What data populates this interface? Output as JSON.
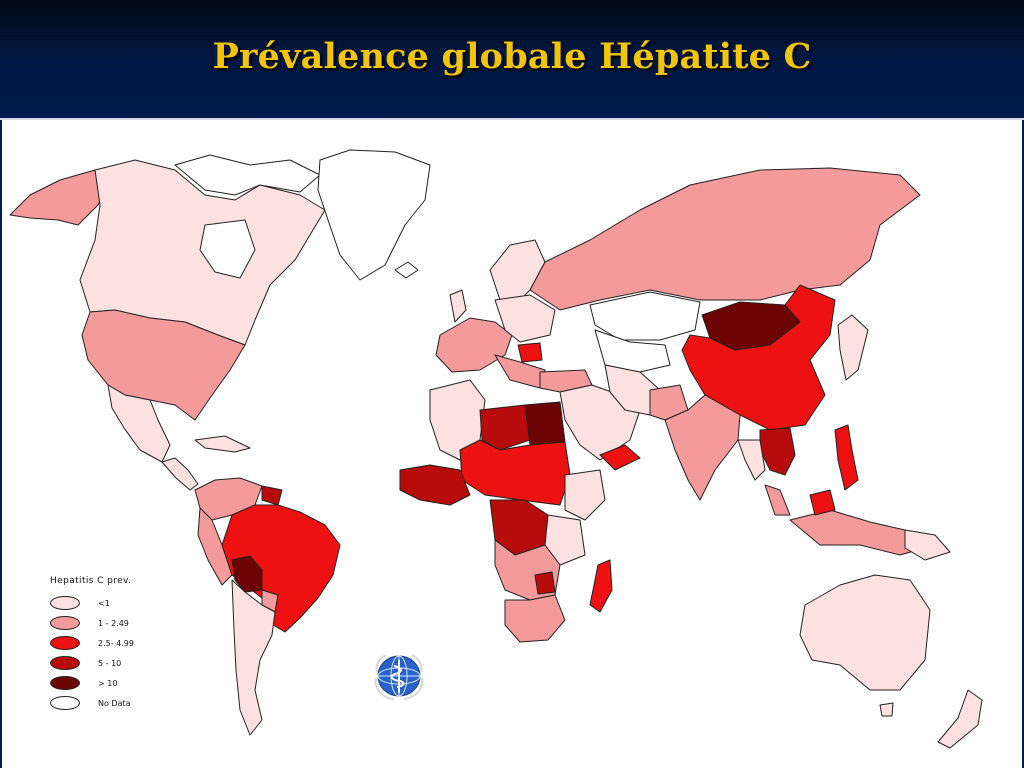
{
  "slide": {
    "title": "Prévalence globale Hépatite C"
  },
  "legend": {
    "title": "Hepatitis C prev.",
    "items": [
      {
        "label": "<1",
        "color": "#fde0e0"
      },
      {
        "label": "1 - 2.49",
        "color": "#f49a9a"
      },
      {
        "label": "2.5- 4.99",
        "color": "#ee1111"
      },
      {
        "label": "5 - 10",
        "color": "#b80c0c"
      },
      {
        "label": "> 10",
        "color": "#6e0505"
      },
      {
        "label": "No Data",
        "color": "#ffffff"
      }
    ]
  },
  "logo": {
    "name": "who-emblem-icon"
  }
}
